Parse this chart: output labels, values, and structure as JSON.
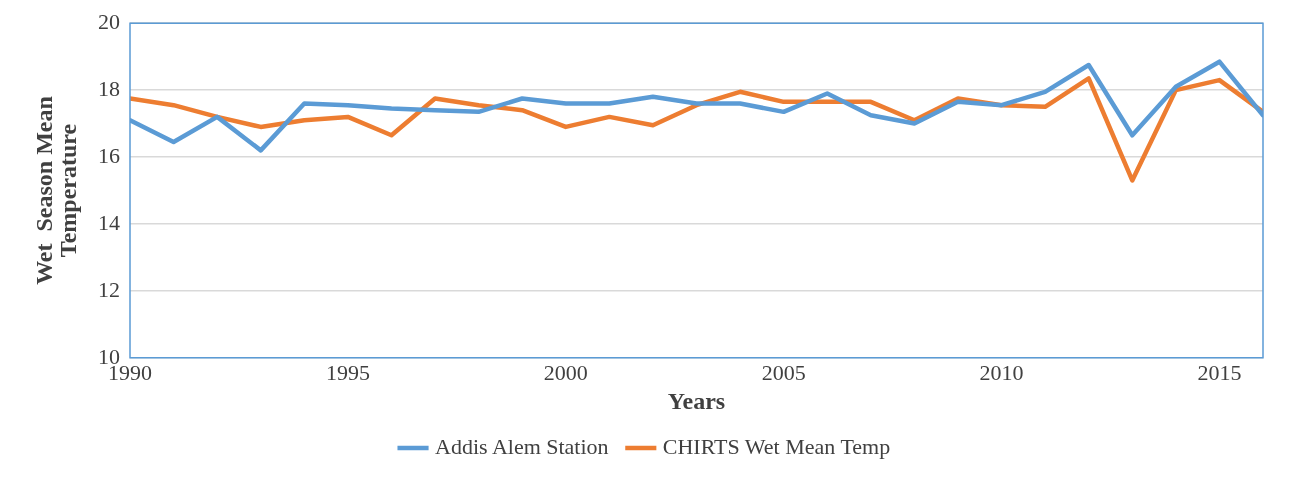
{
  "chart_data": {
    "type": "line",
    "xlabel": "Years",
    "ylabel": "Wet  Season Mean Temperature",
    "x": [
      1990,
      1991,
      1992,
      1993,
      1994,
      1995,
      1996,
      1997,
      1998,
      1999,
      2000,
      2001,
      2002,
      2003,
      2004,
      2005,
      2006,
      2007,
      2008,
      2009,
      2010,
      2011,
      2012,
      2013,
      2014,
      2015,
      2016
    ],
    "series": [
      {
        "name": "Addis Alem Station",
        "color": "#5b9bd5",
        "values": [
          17.1,
          16.45,
          17.2,
          16.2,
          17.6,
          17.55,
          17.45,
          17.4,
          17.35,
          17.75,
          17.6,
          17.6,
          17.8,
          17.6,
          17.6,
          17.35,
          17.9,
          17.25,
          17.0,
          17.65,
          17.55,
          17.95,
          18.75,
          16.65,
          18.1,
          18.85,
          17.25
        ]
      },
      {
        "name": "CHIRTS Wet Mean Temp",
        "color": "#ed7d31",
        "values": [
          17.75,
          17.55,
          17.2,
          16.9,
          17.1,
          17.2,
          16.65,
          17.75,
          17.55,
          17.4,
          16.9,
          17.2,
          16.95,
          17.55,
          17.95,
          17.65,
          17.65,
          17.65,
          17.1,
          17.75,
          17.55,
          17.5,
          18.35,
          15.3,
          18.0,
          18.3,
          17.35
        ]
      }
    ],
    "xlim": [
      1990,
      2016
    ],
    "xticks": [
      1990,
      1995,
      2000,
      2005,
      2010,
      2015
    ],
    "ylim": [
      10,
      20
    ],
    "yticks": [
      10,
      12,
      14,
      16,
      18,
      20
    ],
    "grid": "y",
    "legend": "bottom",
    "marker": "none",
    "line_style": "solid"
  }
}
